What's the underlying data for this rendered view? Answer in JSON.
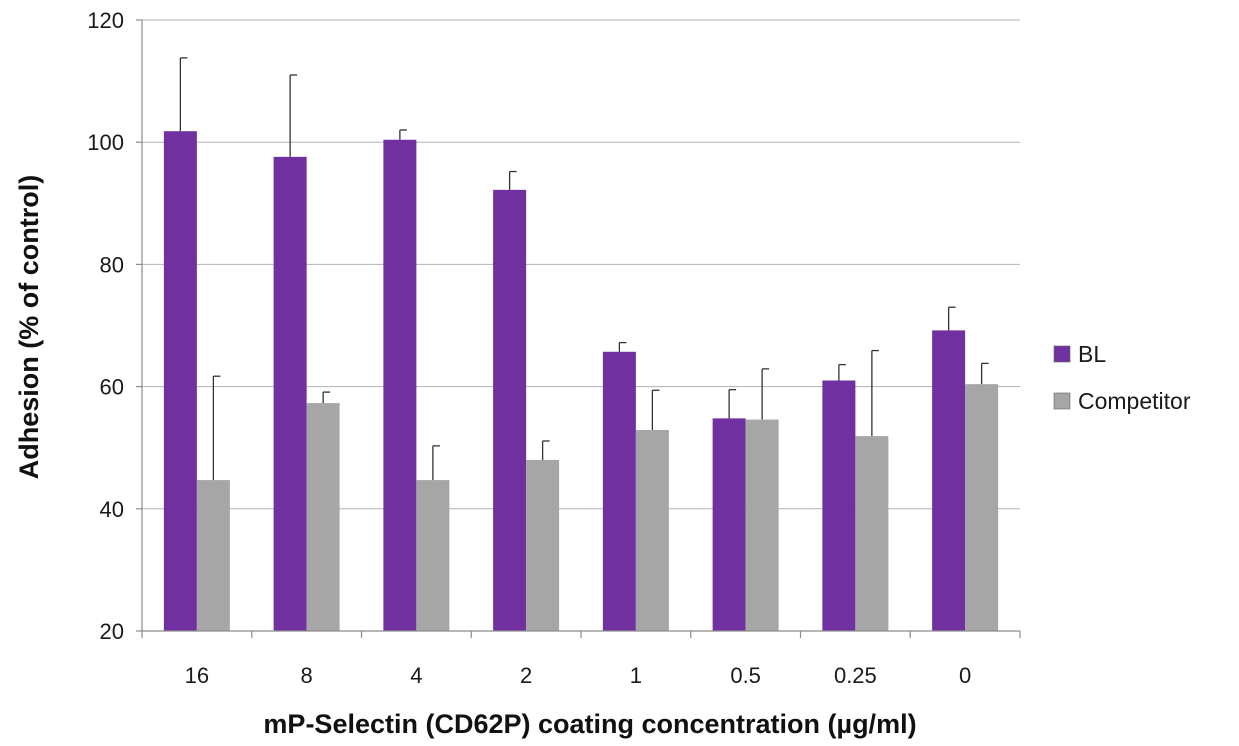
{
  "chart_data": {
    "type": "bar",
    "title": "",
    "xlabel": "mP-Selectin (CD62P) coating concentration (µg/ml)",
    "ylabel": "Adhesion (% of control)",
    "categories": [
      "16",
      "8",
      "4",
      "2",
      "1",
      "0.5",
      "0.25",
      "0"
    ],
    "ylim": [
      20,
      120
    ],
    "yticks": [
      "20",
      "40",
      "60",
      "80",
      "100",
      "120"
    ],
    "grid": true,
    "legend_position": "right",
    "series": [
      {
        "name": "BL",
        "color": "#7030a0",
        "values": [
          101.8,
          97.6,
          100.4,
          92.2,
          65.7,
          54.8,
          61.0,
          69.2
        ],
        "error_upper": [
          12.0,
          13.4,
          1.6,
          3.0,
          1.5,
          4.7,
          2.6,
          3.8
        ]
      },
      {
        "name": "Competitor",
        "color": "#a6a6a6",
        "values": [
          44.7,
          57.3,
          44.7,
          48.0,
          52.9,
          54.6,
          51.9,
          60.4
        ],
        "error_upper": [
          17.0,
          1.8,
          5.6,
          3.1,
          6.5,
          8.3,
          14.0,
          3.4
        ]
      }
    ]
  }
}
